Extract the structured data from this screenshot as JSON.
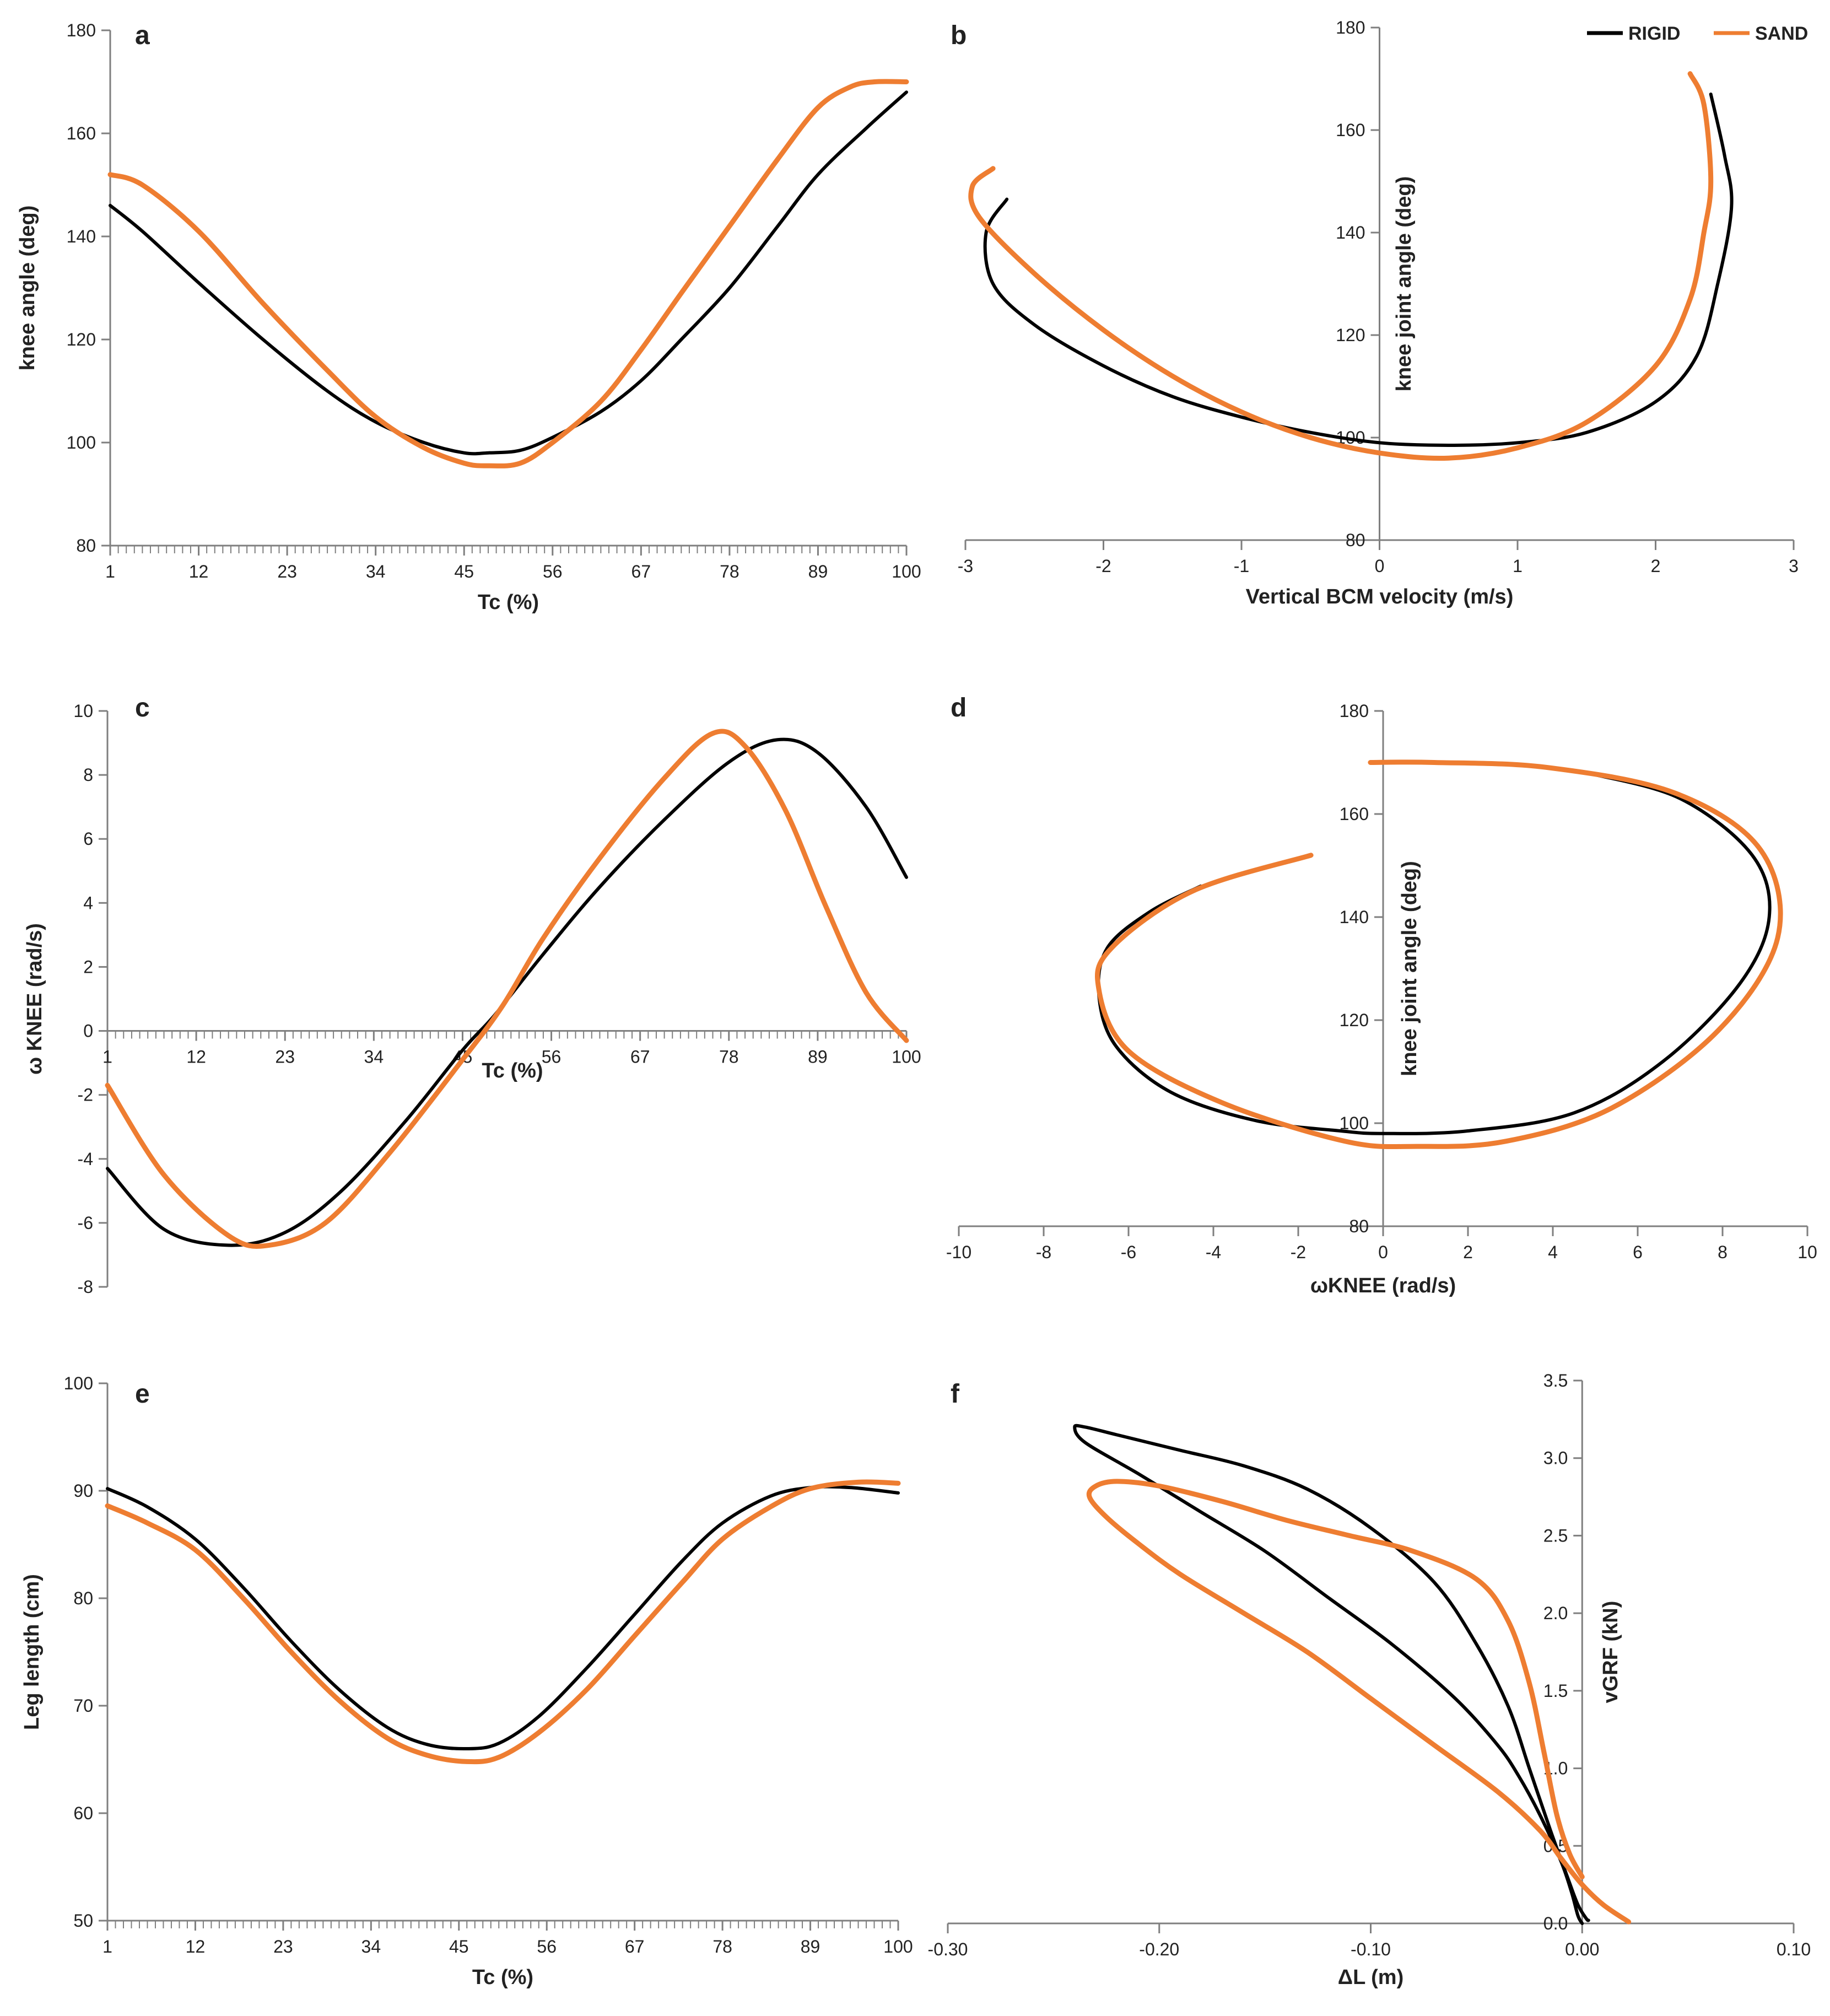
{
  "colors": {
    "rigid": "#000000",
    "sand": "#ee7d31",
    "axis": "#7f7f7f"
  },
  "legend": [
    {
      "name": "RIGID",
      "color": "#000000"
    },
    {
      "name": "SAND",
      "color": "#ee7d31"
    }
  ],
  "chart_data": [
    {
      "panel": "a",
      "type": "line",
      "xlabel": "Tc (%)",
      "ylabel": "knee angle (deg)",
      "xlim": [
        1,
        100
      ],
      "ylim": [
        80,
        180
      ],
      "xticks": [
        1,
        12,
        23,
        34,
        45,
        56,
        67,
        78,
        89,
        100
      ],
      "yticks": [
        80,
        100,
        120,
        140,
        160,
        180
      ],
      "series": [
        {
          "name": "RIGID",
          "x": [
            1,
            5,
            12,
            20,
            28,
            34,
            40,
            45,
            48,
            52,
            56,
            62,
            67,
            72,
            78,
            84,
            89,
            95,
            100
          ],
          "y": [
            146,
            141,
            131,
            120,
            110,
            104,
            100,
            98,
            98,
            98.5,
            101,
            106,
            112,
            120,
            130,
            142,
            152,
            161,
            168
          ]
        },
        {
          "name": "SAND",
          "x": [
            1,
            5,
            12,
            20,
            28,
            34,
            40,
            45,
            48,
            52,
            56,
            62,
            67,
            72,
            78,
            84,
            89,
            93,
            96,
            100
          ],
          "y": [
            152,
            150,
            141,
            127,
            114,
            105,
            99,
            96,
            95.5,
            96,
            100,
            108,
            118,
            129,
            142,
            155,
            165,
            169,
            170,
            170
          ]
        }
      ]
    },
    {
      "panel": "b",
      "type": "line",
      "xlabel": "Vertical BCM velocity (m/s)",
      "ylabel": "knee joint angle (deg)",
      "xlim": [
        -3,
        3
      ],
      "ylim": [
        80,
        180
      ],
      "xticks": [
        -3,
        -2,
        -1,
        0,
        1,
        2,
        3
      ],
      "yticks": [
        80,
        100,
        120,
        140,
        160,
        180
      ],
      "series": [
        {
          "name": "RIGID",
          "x": [
            -2.7,
            -2.85,
            -2.8,
            -2.5,
            -2.0,
            -1.5,
            -1.0,
            -0.5,
            0,
            0.5,
            1.0,
            1.5,
            2.0,
            2.3,
            2.45,
            2.55,
            2.5,
            2.4
          ],
          "y": [
            146.5,
            140,
            130,
            122,
            114,
            108,
            104,
            101,
            99,
            98.5,
            99,
            101,
            107,
            116,
            130,
            145,
            155,
            167
          ]
        },
        {
          "name": "SAND",
          "x": [
            -2.8,
            -2.95,
            -2.9,
            -2.5,
            -2.0,
            -1.5,
            -1.0,
            -0.5,
            0,
            0.5,
            1.0,
            1.5,
            2.0,
            2.25,
            2.35,
            2.4,
            2.35,
            2.25
          ],
          "y": [
            152.5,
            149,
            143,
            132,
            121,
            112,
            105,
            100,
            97,
            96,
            98,
            103,
            114,
            127,
            140,
            150,
            165,
            171
          ]
        }
      ]
    },
    {
      "panel": "c",
      "type": "line",
      "xlabel": "Tc (%)",
      "ylabel": "ω KNEE (rad/s)",
      "xlim": [
        1,
        100
      ],
      "ylim": [
        -8,
        10
      ],
      "xticks": [
        1,
        12,
        23,
        34,
        45,
        56,
        67,
        78,
        89,
        100
      ],
      "yticks": [
        -8,
        -6,
        -4,
        -2,
        0,
        2,
        4,
        6,
        8,
        10
      ],
      "series": [
        {
          "name": "RIGID",
          "x": [
            1,
            8,
            16,
            23,
            30,
            38,
            45,
            49,
            55,
            62,
            70,
            78,
            84,
            89,
            95,
            100
          ],
          "y": [
            -4.3,
            -6.2,
            -6.7,
            -6.3,
            -5.0,
            -2.8,
            -0.6,
            0.5,
            2.4,
            4.5,
            6.6,
            8.4,
            9.1,
            8.7,
            7.0,
            4.8
          ]
        },
        {
          "name": "SAND",
          "x": [
            1,
            8,
            16,
            21,
            28,
            36,
            45,
            50,
            55,
            62,
            70,
            76,
            80,
            85,
            90,
            95,
            100
          ],
          "y": [
            -1.7,
            -4.5,
            -6.4,
            -6.7,
            -6.0,
            -3.8,
            -0.9,
            0.8,
            2.9,
            5.4,
            7.9,
            9.3,
            8.9,
            6.9,
            3.9,
            1.2,
            -0.3
          ]
        }
      ]
    },
    {
      "panel": "d",
      "type": "line",
      "xlabel": "ωKNEE (rad/s)",
      "ylabel": "knee joint angle (deg)",
      "xlim": [
        -10,
        10
      ],
      "ylim": [
        80,
        180
      ],
      "xticks": [
        -10,
        -8,
        -6,
        -4,
        -2,
        0,
        2,
        4,
        6,
        8,
        10
      ],
      "yticks": [
        80,
        100,
        120,
        140,
        160,
        180
      ],
      "series": [
        {
          "name": "RIGID",
          "x": [
            -4.3,
            -5.5,
            -6.5,
            -6.7,
            -6.3,
            -5,
            -3,
            -1,
            0,
            2,
            4.5,
            6.6,
            8.4,
            9.1,
            8.7,
            7.0,
            4.8
          ],
          "y": [
            146,
            141,
            134,
            125,
            115,
            106,
            100.5,
            98.5,
            98,
            98.5,
            102,
            112,
            127,
            140,
            152,
            163,
            168
          ]
        },
        {
          "name": "SAND",
          "x": [
            -1.7,
            -4.5,
            -6.4,
            -6.7,
            -6.0,
            -3.8,
            -0.9,
            0.8,
            2.9,
            5.4,
            7.9,
            9.3,
            8.9,
            6.9,
            3.9,
            1.2,
            -0.3
          ],
          "y": [
            152,
            145,
            134,
            126,
            114,
            104,
            96.5,
            95.5,
            96.5,
            103,
            118,
            136,
            153,
            164,
            169,
            170,
            170
          ]
        }
      ]
    },
    {
      "panel": "e",
      "type": "line",
      "xlabel": "Tc (%)",
      "ylabel": "Leg length (cm)",
      "xlim": [
        1,
        100
      ],
      "ylim": [
        50,
        100
      ],
      "xticks": [
        1,
        12,
        23,
        34,
        45,
        56,
        67,
        78,
        89,
        100
      ],
      "yticks": [
        50,
        60,
        70,
        80,
        90,
        100
      ],
      "series": [
        {
          "name": "RIGID",
          "x": [
            1,
            6,
            12,
            18,
            24,
            30,
            36,
            41,
            46,
            50,
            55,
            61,
            67,
            73,
            78,
            84,
            89,
            94,
            100
          ],
          "y": [
            90.2,
            88.5,
            85.5,
            81,
            76,
            71.5,
            68,
            66.4,
            66,
            66.5,
            69,
            73.5,
            78.5,
            83.5,
            87,
            89.5,
            90.3,
            90.3,
            89.8
          ]
        },
        {
          "name": "SAND",
          "x": [
            1,
            6,
            12,
            18,
            24,
            30,
            36,
            41,
            46,
            50,
            55,
            61,
            67,
            73,
            78,
            84,
            89,
            95,
            100
          ],
          "y": [
            88.6,
            87,
            84.5,
            80,
            75,
            70.5,
            67,
            65.4,
            64.8,
            65.2,
            67.5,
            71.5,
            76.5,
            81.5,
            85.5,
            88.5,
            90.2,
            90.8,
            90.7
          ]
        }
      ]
    },
    {
      "panel": "f",
      "type": "line",
      "xlabel": "ΔL (m)",
      "ylabel": "vGRF (kN)",
      "xlim": [
        -0.3,
        0.1
      ],
      "ylim": [
        0,
        3.5
      ],
      "xticks": [
        -0.3,
        -0.2,
        -0.1,
        0.0,
        0.1
      ],
      "xtick_labels": [
        "-0.30",
        "-0.20",
        "-0.10",
        "0.00",
        "0.10"
      ],
      "yticks": [
        0,
        0.5,
        1.0,
        1.5,
        2.0,
        2.5,
        3.0,
        3.5
      ],
      "ytick_labels": [
        "0.0",
        "0.5",
        "1.0",
        "1.5",
        "2.0",
        "2.5",
        "3.0",
        "3.5"
      ],
      "series": [
        {
          "name": "RIGID",
          "x": [
            0.0,
            -0.002,
            -0.005,
            -0.01,
            -0.02,
            -0.03,
            -0.04,
            -0.06,
            -0.09,
            -0.12,
            -0.15,
            -0.18,
            -0.21,
            -0.235,
            -0.24,
            -0.235,
            -0.22,
            -0.19,
            -0.16,
            -0.13,
            -0.1,
            -0.07,
            -0.05,
            -0.035,
            -0.025,
            -0.015,
            -0.007,
            -0.002,
            0.002,
            0.003
          ],
          "y": [
            0.0,
            0.05,
            0.2,
            0.4,
            0.7,
            0.95,
            1.15,
            1.45,
            1.8,
            2.1,
            2.4,
            2.65,
            2.9,
            3.1,
            3.2,
            3.2,
            3.15,
            3.05,
            2.95,
            2.8,
            2.55,
            2.2,
            1.8,
            1.4,
            1.0,
            0.6,
            0.3,
            0.12,
            0.03,
            0.02
          ]
        },
        {
          "name": "SAND",
          "x": [
            0.022,
            0.01,
            0.0,
            -0.01,
            -0.02,
            -0.04,
            -0.07,
            -0.1,
            -0.13,
            -0.16,
            -0.19,
            -0.21,
            -0.225,
            -0.233,
            -0.23,
            -0.22,
            -0.2,
            -0.17,
            -0.14,
            -0.11,
            -0.08,
            -0.05,
            -0.035,
            -0.025,
            -0.018,
            -0.012,
            -0.006,
            0.0
          ],
          "y": [
            0.01,
            0.12,
            0.25,
            0.42,
            0.6,
            0.85,
            1.15,
            1.45,
            1.75,
            2.0,
            2.25,
            2.45,
            2.62,
            2.75,
            2.82,
            2.85,
            2.82,
            2.72,
            2.6,
            2.5,
            2.4,
            2.22,
            1.95,
            1.55,
            1.1,
            0.7,
            0.45,
            0.3
          ]
        }
      ]
    }
  ]
}
